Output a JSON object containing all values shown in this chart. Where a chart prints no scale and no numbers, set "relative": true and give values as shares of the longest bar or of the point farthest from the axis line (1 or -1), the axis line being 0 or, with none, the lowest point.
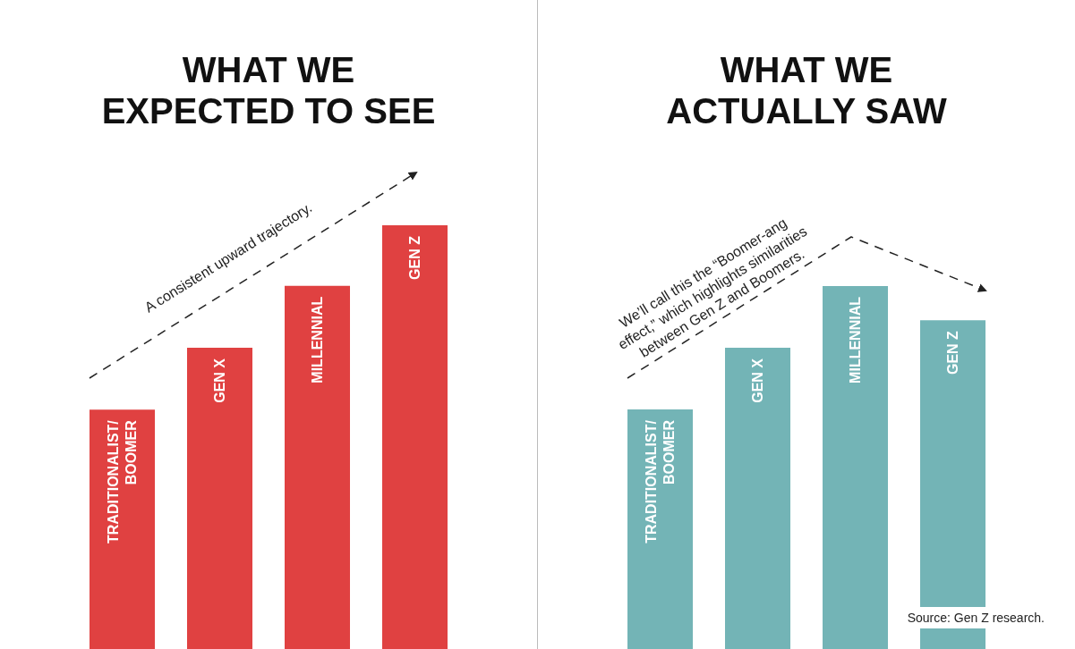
{
  "chart_data": [
    {
      "type": "bar",
      "title": "WHAT WE\nEXPECTED TO SEE",
      "relative": true,
      "categories": [
        "TRADITIONALIST/\nBOOMER",
        "GEN X",
        "MILLENNIAL",
        "GEN Z"
      ],
      "values": [
        0.565,
        0.711,
        0.857,
        1
      ],
      "color": "#e04141",
      "annotations": [
        "A consistent upward trajectory."
      ]
    },
    {
      "type": "bar",
      "title": "WHAT WE\nACTUALLY SAW",
      "relative": true,
      "categories": [
        "TRADITIONALIST/\nBOOMER",
        "GEN X",
        "MILLENNIAL",
        "GEN Z"
      ],
      "values": [
        0.66,
        0.83,
        1,
        0.906
      ],
      "color": "#73b4b6",
      "annotations": [
        "We’ll call this the “Boomer-ang\neffect,” which highlights similarities\nbetween Gen Z and Boomers.",
        "Source: Gen Z research."
      ]
    }
  ]
}
